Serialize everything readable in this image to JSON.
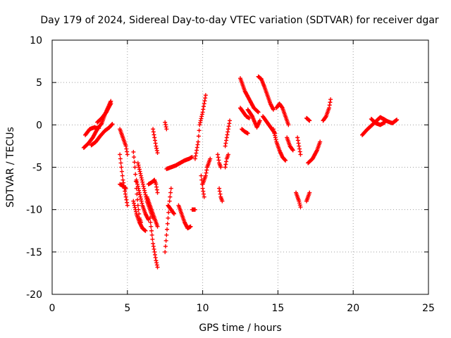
{
  "chart_data": {
    "type": "scatter",
    "title": "Day 179 of 2024, Sidereal Day-to-day VTEC variation (SDTVAR) for receiver dgar",
    "xlabel": "GPS time / hours",
    "ylabel": "SDTVAR / TECUs",
    "xlim": [
      0,
      25
    ],
    "ylim": [
      -20,
      10
    ],
    "xticks": [
      0,
      5,
      10,
      15,
      20,
      25
    ],
    "yticks": [
      -20,
      -15,
      -10,
      -5,
      0,
      5,
      10
    ],
    "grid": true,
    "marker": "plus",
    "series": [
      {
        "name": "",
        "color": "#ff0000",
        "tracks": [
          [
            [
              2.1,
              -2.7
            ],
            [
              2.4,
              -2.2
            ],
            [
              2.7,
              -1.5
            ],
            [
              3.0,
              -0.5
            ],
            [
              3.3,
              0.2
            ],
            [
              3.5,
              1.2
            ],
            [
              3.7,
              2.0
            ],
            [
              3.9,
              2.8
            ]
          ],
          [
            [
              2.2,
              -1.2
            ],
            [
              2.5,
              -0.5
            ],
            [
              2.8,
              -0.3
            ],
            [
              3.1,
              -0.4
            ]
          ],
          [
            [
              2.6,
              -2.4
            ],
            [
              2.9,
              -2.0
            ],
            [
              3.2,
              -1.3
            ],
            [
              3.5,
              -0.7
            ],
            [
              3.8,
              -0.3
            ],
            [
              4.0,
              0.1
            ]
          ],
          [
            [
              3.0,
              0.3
            ],
            [
              3.3,
              0.8
            ],
            [
              3.6,
              1.5
            ],
            [
              3.8,
              2.2
            ],
            [
              3.9,
              2.5
            ]
          ],
          [
            [
              4.5,
              -0.5
            ],
            [
              4.7,
              -1.5
            ],
            [
              4.9,
              -2.5
            ],
            [
              5.0,
              -3.5
            ]
          ],
          [
            [
              4.5,
              -3.5
            ],
            [
              4.6,
              -5.0
            ],
            [
              4.7,
              -6.5
            ],
            [
              4.8,
              -7.5
            ],
            [
              4.9,
              -8.5
            ],
            [
              5.0,
              -9.5
            ]
          ],
          [
            [
              4.5,
              -7.0
            ],
            [
              4.7,
              -7.2
            ],
            [
              4.9,
              -7.5
            ]
          ],
          [
            [
              5.4,
              -3.2
            ],
            [
              5.5,
              -5.0
            ],
            [
              5.6,
              -7.5
            ],
            [
              5.7,
              -9.5
            ],
            [
              5.8,
              -11.0
            ],
            [
              5.9,
              -11.5
            ]
          ],
          [
            [
              5.4,
              -9.0
            ],
            [
              5.6,
              -10.5
            ],
            [
              5.8,
              -11.5
            ],
            [
              6.0,
              -12.2
            ],
            [
              6.2,
              -12.5
            ]
          ],
          [
            [
              5.7,
              -4.5
            ],
            [
              5.9,
              -6.0
            ],
            [
              6.1,
              -7.5
            ],
            [
              6.3,
              -9.0
            ],
            [
              6.5,
              -10.0
            ],
            [
              6.7,
              -11.0
            ]
          ],
          [
            [
              5.6,
              -6.5
            ],
            [
              5.8,
              -8.0
            ],
            [
              6.0,
              -9.5
            ],
            [
              6.2,
              -10.5
            ],
            [
              6.4,
              -11.2
            ]
          ],
          [
            [
              6.4,
              -7.0
            ],
            [
              6.6,
              -6.8
            ],
            [
              6.8,
              -6.5
            ],
            [
              6.9,
              -7.0
            ],
            [
              7.0,
              -8.0
            ]
          ],
          [
            [
              6.5,
              -11.0
            ],
            [
              6.6,
              -12.5
            ],
            [
              6.7,
              -14.0
            ],
            [
              6.8,
              -15.0
            ],
            [
              6.9,
              -16.0
            ],
            [
              7.0,
              -16.8
            ]
          ],
          [
            [
              6.3,
              -8.5
            ],
            [
              6.5,
              -9.5
            ],
            [
              6.7,
              -10.5
            ],
            [
              6.9,
              -11.5
            ],
            [
              7.0,
              -12.0
            ]
          ],
          [
            [
              6.7,
              -0.5
            ],
            [
              6.8,
              -1.5
            ],
            [
              6.9,
              -2.5
            ],
            [
              7.0,
              -3.3
            ]
          ],
          [
            [
              7.5,
              0.3
            ],
            [
              7.6,
              -0.5
            ]
          ],
          [
            [
              7.6,
              -5.2
            ],
            [
              7.9,
              -5.0
            ],
            [
              8.2,
              -4.8
            ],
            [
              8.5,
              -4.5
            ],
            [
              8.8,
              -4.2
            ],
            [
              9.1,
              -4.0
            ],
            [
              9.3,
              -3.8
            ]
          ],
          [
            [
              7.5,
              -15.0
            ],
            [
              7.6,
              -13.0
            ],
            [
              7.7,
              -11.0
            ],
            [
              7.8,
              -9.0
            ],
            [
              7.9,
              -7.5
            ]
          ],
          [
            [
              7.7,
              -9.5
            ],
            [
              7.9,
              -10.0
            ],
            [
              8.1,
              -10.5
            ]
          ],
          [
            [
              8.4,
              -9.5
            ],
            [
              8.6,
              -10.5
            ],
            [
              8.8,
              -11.5
            ],
            [
              9.0,
              -12.2
            ],
            [
              9.2,
              -12.0
            ]
          ],
          [
            [
              9.3,
              -10.0
            ],
            [
              9.5,
              -10.0
            ]
          ],
          [
            [
              9.5,
              -4.0
            ],
            [
              9.7,
              -2.0
            ],
            [
              9.8,
              0.0
            ],
            [
              10.0,
              1.5
            ],
            [
              10.1,
              2.5
            ],
            [
              10.2,
              3.5
            ]
          ],
          [
            [
              9.9,
              -6.0
            ],
            [
              10.0,
              -7.5
            ],
            [
              10.1,
              -8.5
            ]
          ],
          [
            [
              10.0,
              -7.0
            ],
            [
              10.2,
              -6.0
            ],
            [
              10.3,
              -5.0
            ],
            [
              10.4,
              -4.5
            ],
            [
              10.5,
              -4.0
            ]
          ],
          [
            [
              11.0,
              -3.5
            ],
            [
              11.1,
              -4.5
            ],
            [
              11.2,
              -5.0
            ]
          ],
          [
            [
              11.1,
              -7.5
            ],
            [
              11.2,
              -8.5
            ],
            [
              11.3,
              -9.0
            ]
          ],
          [
            [
              11.5,
              -2.5
            ],
            [
              11.6,
              -1.5
            ],
            [
              11.7,
              -0.5
            ],
            [
              11.8,
              0.5
            ]
          ],
          [
            [
              11.5,
              -5.0
            ],
            [
              11.6,
              -4.0
            ],
            [
              11.7,
              -3.5
            ]
          ],
          [
            [
              12.5,
              5.5
            ],
            [
              12.8,
              4.0
            ],
            [
              13.1,
              3.0
            ],
            [
              13.4,
              2.0
            ],
            [
              13.7,
              1.5
            ]
          ],
          [
            [
              12.5,
              2.0
            ],
            [
              12.7,
              1.5
            ],
            [
              12.9,
              1.0
            ],
            [
              13.1,
              0.8
            ]
          ],
          [
            [
              12.6,
              -0.5
            ],
            [
              12.8,
              -0.8
            ],
            [
              13.0,
              -1.0
            ]
          ],
          [
            [
              13.0,
              1.8
            ],
            [
              13.3,
              1.0
            ],
            [
              13.6,
              -0.3
            ],
            [
              13.8,
              0.5
            ]
          ],
          [
            [
              13.7,
              5.7
            ],
            [
              13.9,
              5.4
            ],
            [
              14.1,
              4.5
            ],
            [
              14.3,
              3.5
            ],
            [
              14.5,
              2.5
            ],
            [
              14.7,
              1.8
            ]
          ],
          [
            [
              14.0,
              1.0
            ],
            [
              14.2,
              0.5
            ],
            [
              14.4,
              0.0
            ],
            [
              14.6,
              -0.5
            ],
            [
              14.8,
              -1.0
            ]
          ],
          [
            [
              14.7,
              -0.5
            ],
            [
              14.9,
              -2.0
            ],
            [
              15.1,
              -3.0
            ],
            [
              15.3,
              -3.8
            ],
            [
              15.5,
              -4.2
            ]
          ],
          [
            [
              14.9,
              2.0
            ],
            [
              15.1,
              2.5
            ],
            [
              15.3,
              2.0
            ],
            [
              15.5,
              1.0
            ],
            [
              15.7,
              0.0
            ]
          ],
          [
            [
              15.6,
              -1.5
            ],
            [
              15.8,
              -2.5
            ],
            [
              16.0,
              -3.0
            ]
          ],
          [
            [
              16.2,
              -8.0
            ],
            [
              16.3,
              -8.5
            ],
            [
              16.4,
              -9.0
            ],
            [
              16.5,
              -9.7
            ]
          ],
          [
            [
              16.3,
              -1.5
            ],
            [
              16.4,
              -2.5
            ],
            [
              16.5,
              -3.5
            ]
          ],
          [
            [
              16.9,
              0.8
            ],
            [
              17.1,
              0.5
            ]
          ],
          [
            [
              16.9,
              -9.0
            ],
            [
              17.1,
              -8.0
            ]
          ],
          [
            [
              17.0,
              -4.5
            ],
            [
              17.3,
              -4.0
            ],
            [
              17.6,
              -3.0
            ],
            [
              17.8,
              -2.0
            ]
          ],
          [
            [
              18.0,
              0.5
            ],
            [
              18.2,
              1.0
            ],
            [
              18.4,
              2.0
            ],
            [
              18.5,
              3.0
            ]
          ],
          [
            [
              20.6,
              -1.2
            ],
            [
              20.9,
              -0.6
            ],
            [
              21.2,
              -0.1
            ],
            [
              21.5,
              0.4
            ],
            [
              21.8,
              0.9
            ],
            [
              22.1,
              0.6
            ]
          ],
          [
            [
              21.2,
              0.7
            ],
            [
              21.5,
              0.2
            ],
            [
              21.8,
              0.0
            ],
            [
              22.1,
              0.3
            ]
          ],
          [
            [
              22.0,
              0.7
            ],
            [
              22.3,
              0.4
            ],
            [
              22.6,
              0.2
            ],
            [
              22.9,
              0.6
            ]
          ]
        ]
      }
    ]
  }
}
